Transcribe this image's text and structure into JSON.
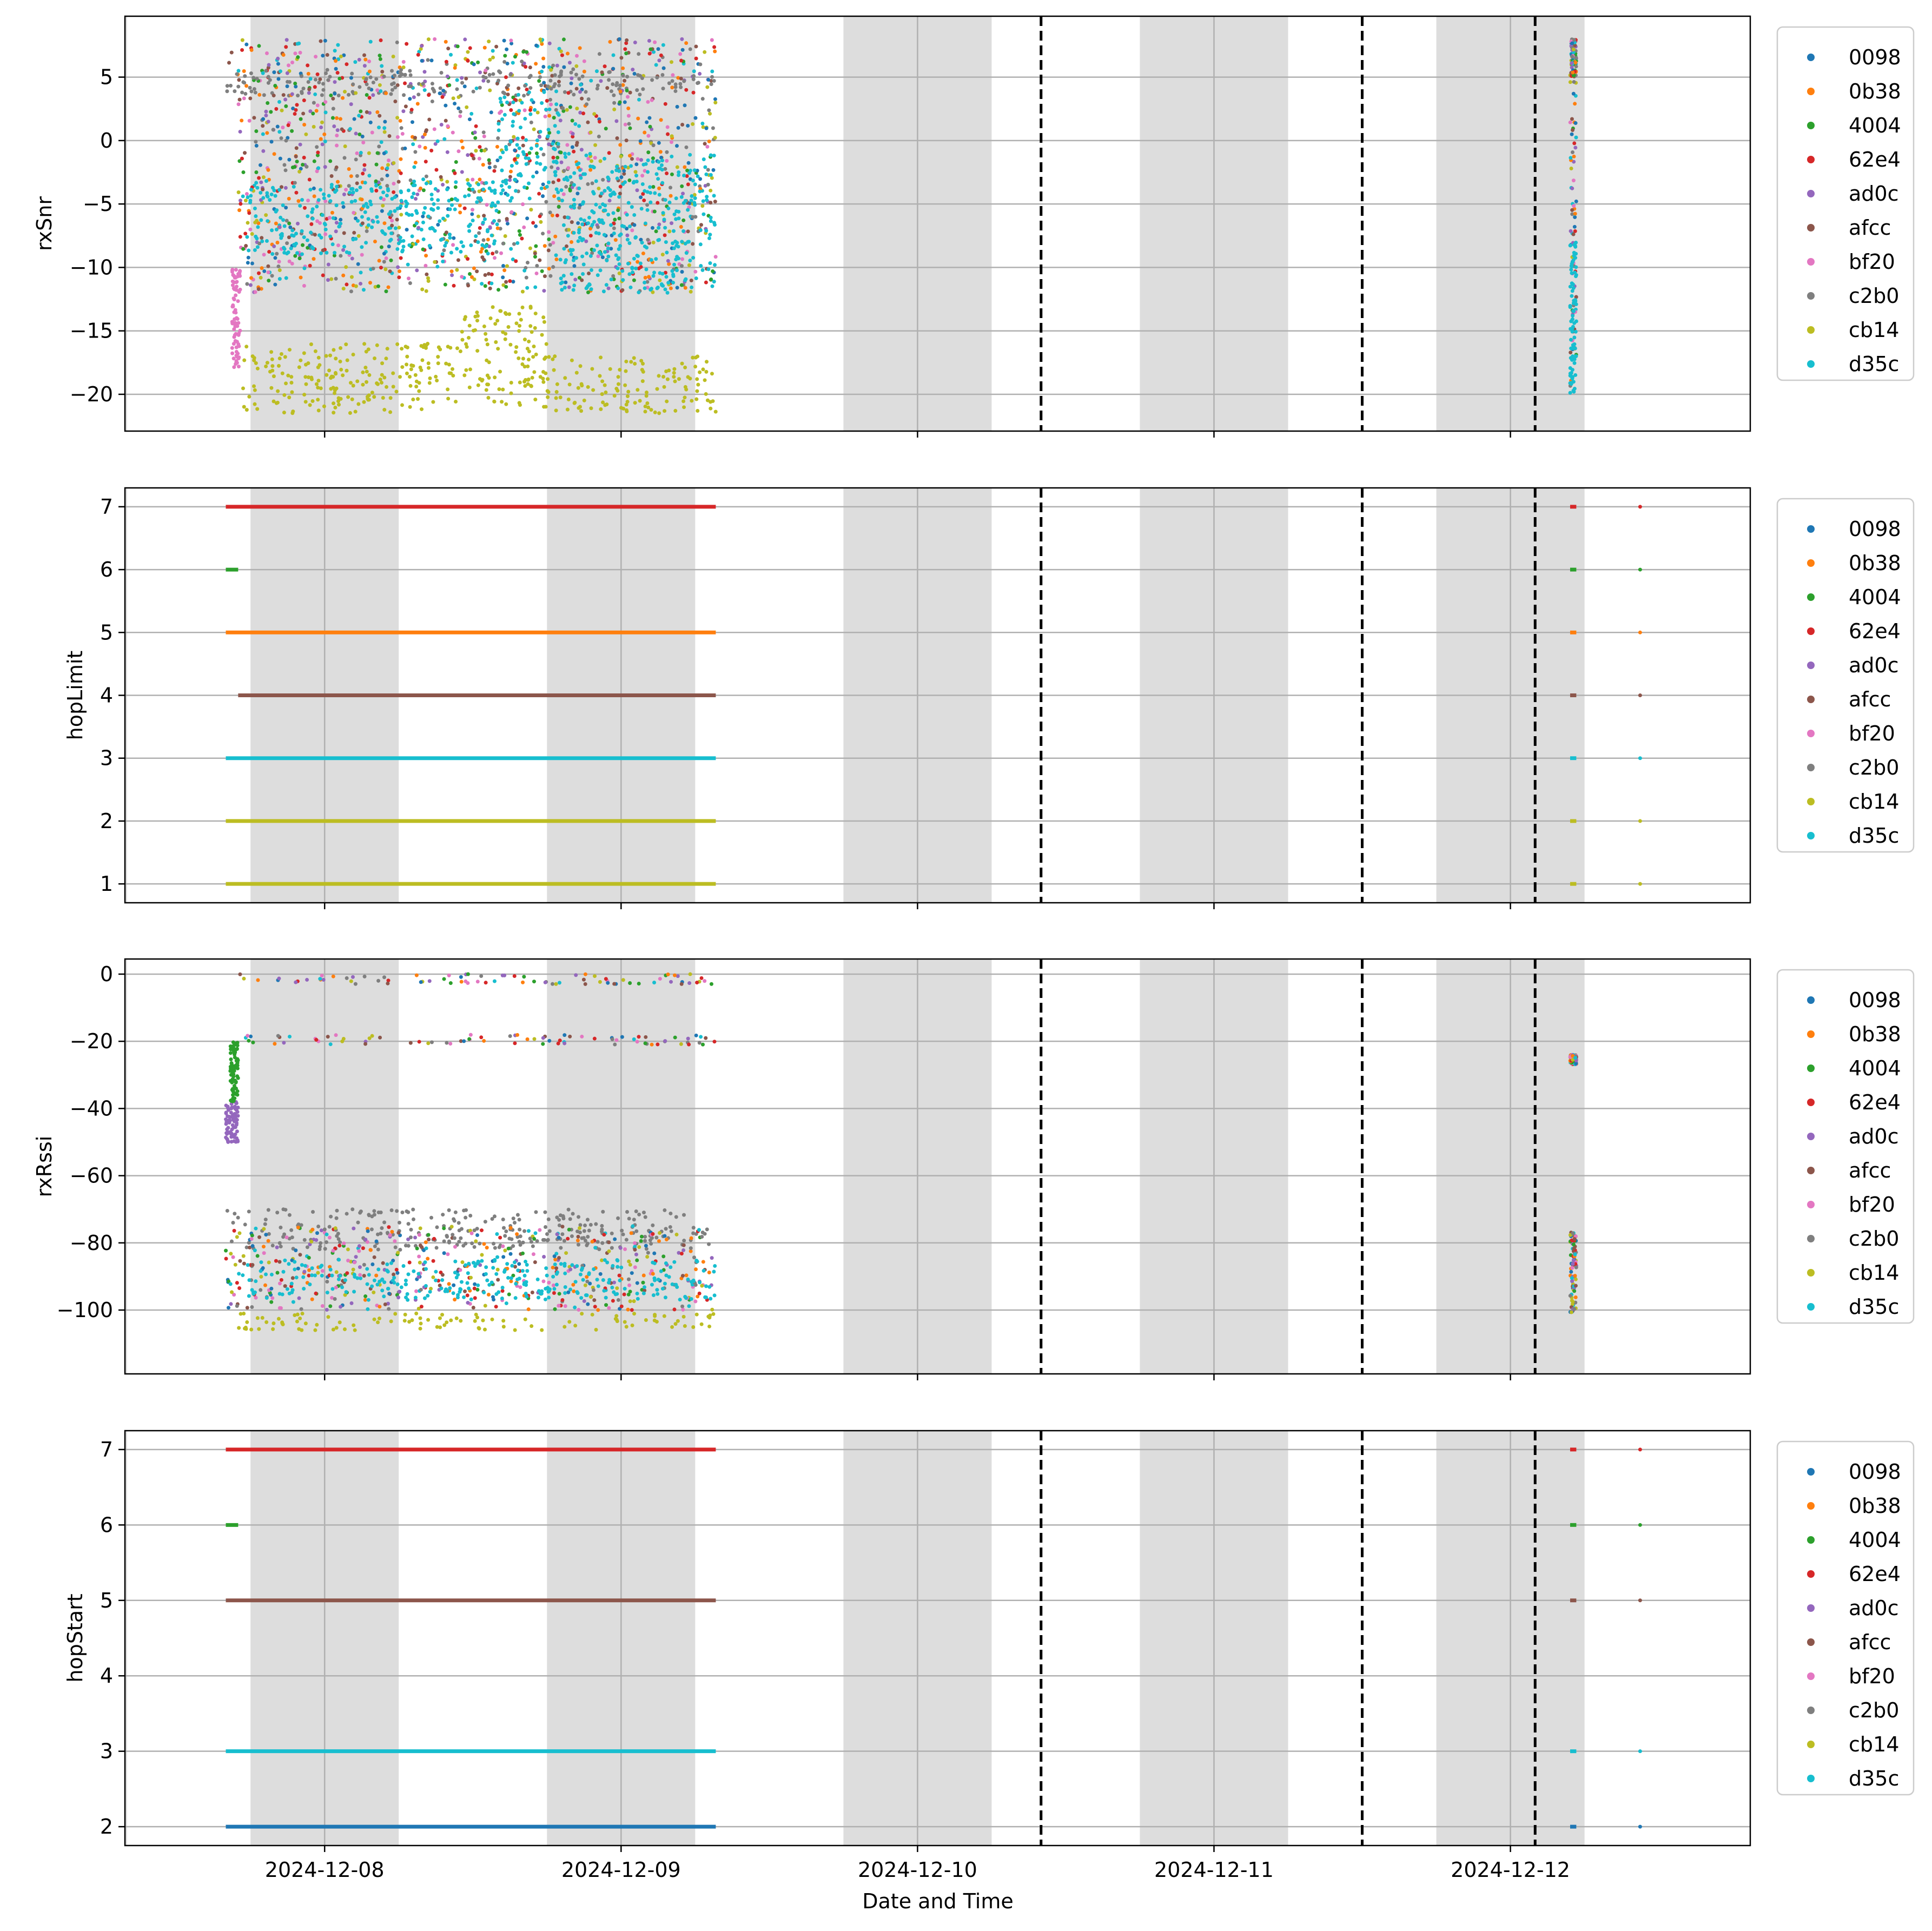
{
  "chart_data": {
    "type": "scatter",
    "xlabel": "Date and Time",
    "x_tick_labels": [
      "2024-12-08",
      "2024-12-09",
      "2024-12-10",
      "2024-12-11",
      "2024-12-12"
    ],
    "xlim": [
      "2024-12-07 07:50",
      "2024-12-12 19:25"
    ],
    "grid": true,
    "legend_placement": "outside-right",
    "night_shading": [
      [
        "2024-12-07 07:00",
        "2024-12-07 08:00"
      ],
      [
        "2024-12-07 18:00",
        "2024-12-08 06:00"
      ],
      [
        "2024-12-08 18:00",
        "2024-12-09 06:00"
      ],
      [
        "2024-12-09 18:00",
        "2024-12-10 06:00"
      ],
      [
        "2024-12-10 18:00",
        "2024-12-11 06:00"
      ],
      [
        "2024-12-11 18:00",
        "2024-12-12 06:00"
      ]
    ],
    "vertical_dashed_lines": [
      "2024-12-10 10:00",
      "2024-12-11 12:00",
      "2024-12-12 02:00"
    ],
    "legend": [
      "0098",
      "0b38",
      "4004",
      "62e4",
      "ad0c",
      "afcc",
      "bf20",
      "c2b0",
      "cb14",
      "d35c"
    ],
    "colors": {
      "0098": "#1f77b4",
      "0b38": "#ff7f0e",
      "4004": "#2ca02c",
      "62e4": "#d62728",
      "ad0c": "#9467bd",
      "afcc": "#8c564b",
      "bf20": "#e377c2",
      "c2b0": "#7f7f7f",
      "cb14": "#bcbd22",
      "d35c": "#17becf"
    },
    "panels": [
      {
        "ylabel": "rxSnr",
        "ylim": [
          -22.9,
          9.8
        ],
        "yticks": [
          5,
          0,
          -5,
          -10,
          -15,
          -20
        ],
        "ytick_labels": [
          "5",
          "0",
          "−5",
          "−10",
          "−15",
          "−20"
        ],
        "clusters": [
          {
            "series": "mixed",
            "x": [
              "2024-12-07 16:00",
              "2024-12-09 07:40"
            ],
            "y": [
              4,
              8
            ],
            "note": "dense band"
          },
          {
            "series": "c2b0",
            "x": [
              "2024-12-07 16:00",
              "2024-12-09 07:40"
            ],
            "y": [
              3.5,
              5.5
            ]
          },
          {
            "series": "mixed",
            "x": [
              "2024-12-07 17:00",
              "2024-12-09 07:40"
            ],
            "y": [
              -12,
              4
            ]
          },
          {
            "series": "d35c",
            "x": [
              "2024-12-07 17:40",
              "2024-12-08 07:00"
            ],
            "y": [
              -9,
              -3.5
            ]
          },
          {
            "series": "d35c",
            "x": [
              "2024-12-08 07:00",
              "2024-12-08 14:00"
            ],
            "y": [
              -9,
              -3
            ]
          },
          {
            "series": "d35c",
            "x": [
              "2024-12-08 14:00",
              "2024-12-08 19:00"
            ],
            "y": [
              -5,
              4
            ]
          },
          {
            "series": "d35c",
            "x": [
              "2024-12-08 19:00",
              "2024-12-09 07:40"
            ],
            "y": [
              -12,
              -1
            ]
          },
          {
            "series": "bf20",
            "x": [
              "2024-12-07 16:30",
              "2024-12-07 17:10"
            ],
            "y": [
              -18,
              -10
            ]
          },
          {
            "series": "cb14",
            "x": [
              "2024-12-07 17:10",
              "2024-12-08 11:00"
            ],
            "y": [
              -21.5,
              -16
            ]
          },
          {
            "series": "cb14",
            "x": [
              "2024-12-08 11:00",
              "2024-12-08 18:00"
            ],
            "y": [
              -21,
              -13
            ]
          },
          {
            "series": "cb14",
            "x": [
              "2024-12-08 18:00",
              "2024-12-09 07:40"
            ],
            "y": [
              -21.5,
              -17
            ]
          },
          {
            "series": "mixed",
            "x": [
              "2024-12-12 04:50",
              "2024-12-12 05:20"
            ],
            "y": [
              -20,
              8
            ]
          },
          {
            "series": "d35c",
            "x": [
              "2024-12-12 04:50",
              "2024-12-12 05:20"
            ],
            "y": [
              -20,
              -8
            ]
          },
          {
            "series": "mixed",
            "x": [
              "2024-12-12 04:55",
              "2024-12-12 05:20"
            ],
            "y": [
              5,
              8
            ]
          }
        ]
      },
      {
        "ylabel": "hopLimit",
        "ylim": [
          0.7,
          7.3
        ],
        "yticks": [
          7,
          6,
          5,
          4,
          3,
          2,
          1
        ],
        "ytick_labels": [
          "7",
          "6",
          "5",
          "4",
          "3",
          "2",
          "1"
        ],
        "bands": [
          {
            "y": 7,
            "series": "62e4",
            "start": "2024-12-07 16:00",
            "end": "2024-12-09 07:40"
          },
          {
            "y": 6,
            "series": "4004",
            "start": "2024-12-07 16:00",
            "end": "2024-12-07 17:00"
          },
          {
            "y": 5,
            "series": "0b38",
            "start": "2024-12-07 16:00",
            "end": "2024-12-09 07:40"
          },
          {
            "y": 4,
            "series": "afcc",
            "start": "2024-12-07 17:00",
            "end": "2024-12-09 07:40"
          },
          {
            "y": 3,
            "series": "d35c",
            "start": "2024-12-07 16:00",
            "end": "2024-12-09 07:40"
          },
          {
            "y": 2,
            "series": "cb14",
            "start": "2024-12-07 16:00",
            "end": "2024-12-09 07:40"
          },
          {
            "y": 1,
            "series": "cb14",
            "start": "2024-12-07 16:00",
            "end": "2024-12-09 07:40"
          }
        ]
      },
      {
        "ylabel": "rxRssi",
        "ylim": [
          -119,
          4.5
        ],
        "yticks": [
          0,
          -20,
          -40,
          -60,
          -80,
          -100
        ],
        "ytick_labels": [
          "0",
          "−20",
          "−40",
          "−60",
          "−80",
          "−100"
        ],
        "clusters": [
          {
            "series": "mixed",
            "x": [
              "2024-12-07 17:00",
              "2024-12-09 07:40"
            ],
            "y": [
              -3,
              0
            ]
          },
          {
            "series": "mixed",
            "x": [
              "2024-12-07 17:00",
              "2024-12-09 07:40"
            ],
            "y": [
              -21,
              -18
            ]
          },
          {
            "series": "ad0c",
            "x": [
              "2024-12-07 16:00",
              "2024-12-07 17:00"
            ],
            "y": [
              -50,
              -38
            ]
          },
          {
            "series": "4004",
            "x": [
              "2024-12-07 16:20",
              "2024-12-07 17:00"
            ],
            "y": [
              -38,
              -20
            ]
          },
          {
            "series": "c2b0",
            "x": [
              "2024-12-07 16:00",
              "2024-12-09 07:40"
            ],
            "y": [
              -82,
              -70
            ]
          },
          {
            "series": "mixed",
            "x": [
              "2024-12-07 16:00",
              "2024-12-09 07:40"
            ],
            "y": [
              -100,
              -75
            ]
          },
          {
            "series": "d35c",
            "x": [
              "2024-12-07 17:00",
              "2024-12-09 07:40"
            ],
            "y": [
              -97,
              -85
            ]
          },
          {
            "series": "cb14",
            "x": [
              "2024-12-07 17:00",
              "2024-12-09 07:40"
            ],
            "y": [
              -106,
              -101
            ]
          },
          {
            "series": "mixed",
            "x": [
              "2024-12-12 04:50",
              "2024-12-12 05:20"
            ],
            "y": [
              -27,
              -24
            ]
          },
          {
            "series": "mixed",
            "x": [
              "2024-12-12 04:50",
              "2024-12-12 05:20"
            ],
            "y": [
              -101,
              -76
            ]
          }
        ]
      },
      {
        "ylabel": "hopStart",
        "ylim": [
          1.75,
          7.25
        ],
        "yticks": [
          7,
          6,
          5,
          4,
          3,
          2
        ],
        "ytick_labels": [
          "7",
          "6",
          "5",
          "4",
          "3",
          "2"
        ],
        "bands": [
          {
            "y": 7,
            "series": "62e4",
            "start": "2024-12-07 16:00",
            "end": "2024-12-09 07:40"
          },
          {
            "y": 6,
            "series": "4004",
            "start": "2024-12-07 16:00",
            "end": "2024-12-07 17:00"
          },
          {
            "y": 5,
            "series": "afcc",
            "start": "2024-12-07 16:00",
            "end": "2024-12-09 07:40"
          },
          {
            "y": 3,
            "series": "d35c",
            "start": "2024-12-07 16:00",
            "end": "2024-12-09 07:40"
          },
          {
            "y": 2,
            "series": "0098",
            "start": "2024-12-07 16:00",
            "end": "2024-12-09 07:40"
          }
        ]
      }
    ]
  }
}
